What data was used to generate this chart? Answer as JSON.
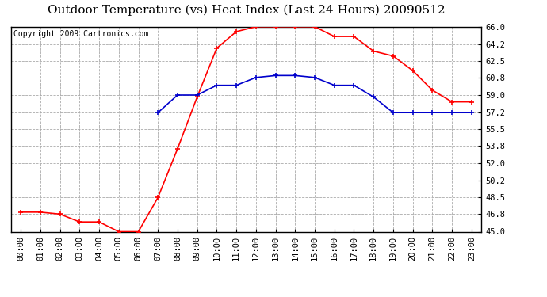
{
  "title": "Outdoor Temperature (vs) Heat Index (Last 24 Hours) 20090512",
  "copyright": "Copyright 2009 Cartronics.com",
  "x_labels": [
    "00:00",
    "01:00",
    "02:00",
    "03:00",
    "04:00",
    "05:00",
    "06:00",
    "07:00",
    "08:00",
    "09:00",
    "10:00",
    "11:00",
    "12:00",
    "13:00",
    "14:00",
    "15:00",
    "16:00",
    "17:00",
    "18:00",
    "19:00",
    "20:00",
    "21:00",
    "22:00",
    "23:00"
  ],
  "temp_red": [
    47.0,
    47.0,
    46.8,
    46.0,
    46.0,
    45.0,
    45.0,
    48.5,
    53.5,
    58.8,
    63.8,
    65.5,
    66.0,
    66.0,
    66.0,
    66.0,
    65.0,
    65.0,
    63.5,
    63.0,
    61.5,
    59.5,
    58.3,
    58.3
  ],
  "heat_blue": [
    null,
    null,
    null,
    null,
    null,
    null,
    null,
    57.2,
    59.0,
    59.0,
    60.0,
    60.0,
    60.8,
    61.0,
    61.0,
    60.8,
    60.0,
    60.0,
    58.8,
    57.2,
    57.2,
    57.2,
    57.2,
    57.2
  ],
  "ylim": [
    45.0,
    66.0
  ],
  "yticks": [
    45.0,
    46.8,
    48.5,
    50.2,
    52.0,
    53.8,
    55.5,
    57.2,
    59.0,
    60.8,
    62.5,
    64.2,
    66.0
  ],
  "red_color": "#ff0000",
  "blue_color": "#0000cc",
  "bg_color": "#ffffff",
  "plot_bg": "#ffffff",
  "grid_color": "#aaaaaa",
  "title_fontsize": 11,
  "copyright_fontsize": 7,
  "tick_fontsize": 7.5
}
